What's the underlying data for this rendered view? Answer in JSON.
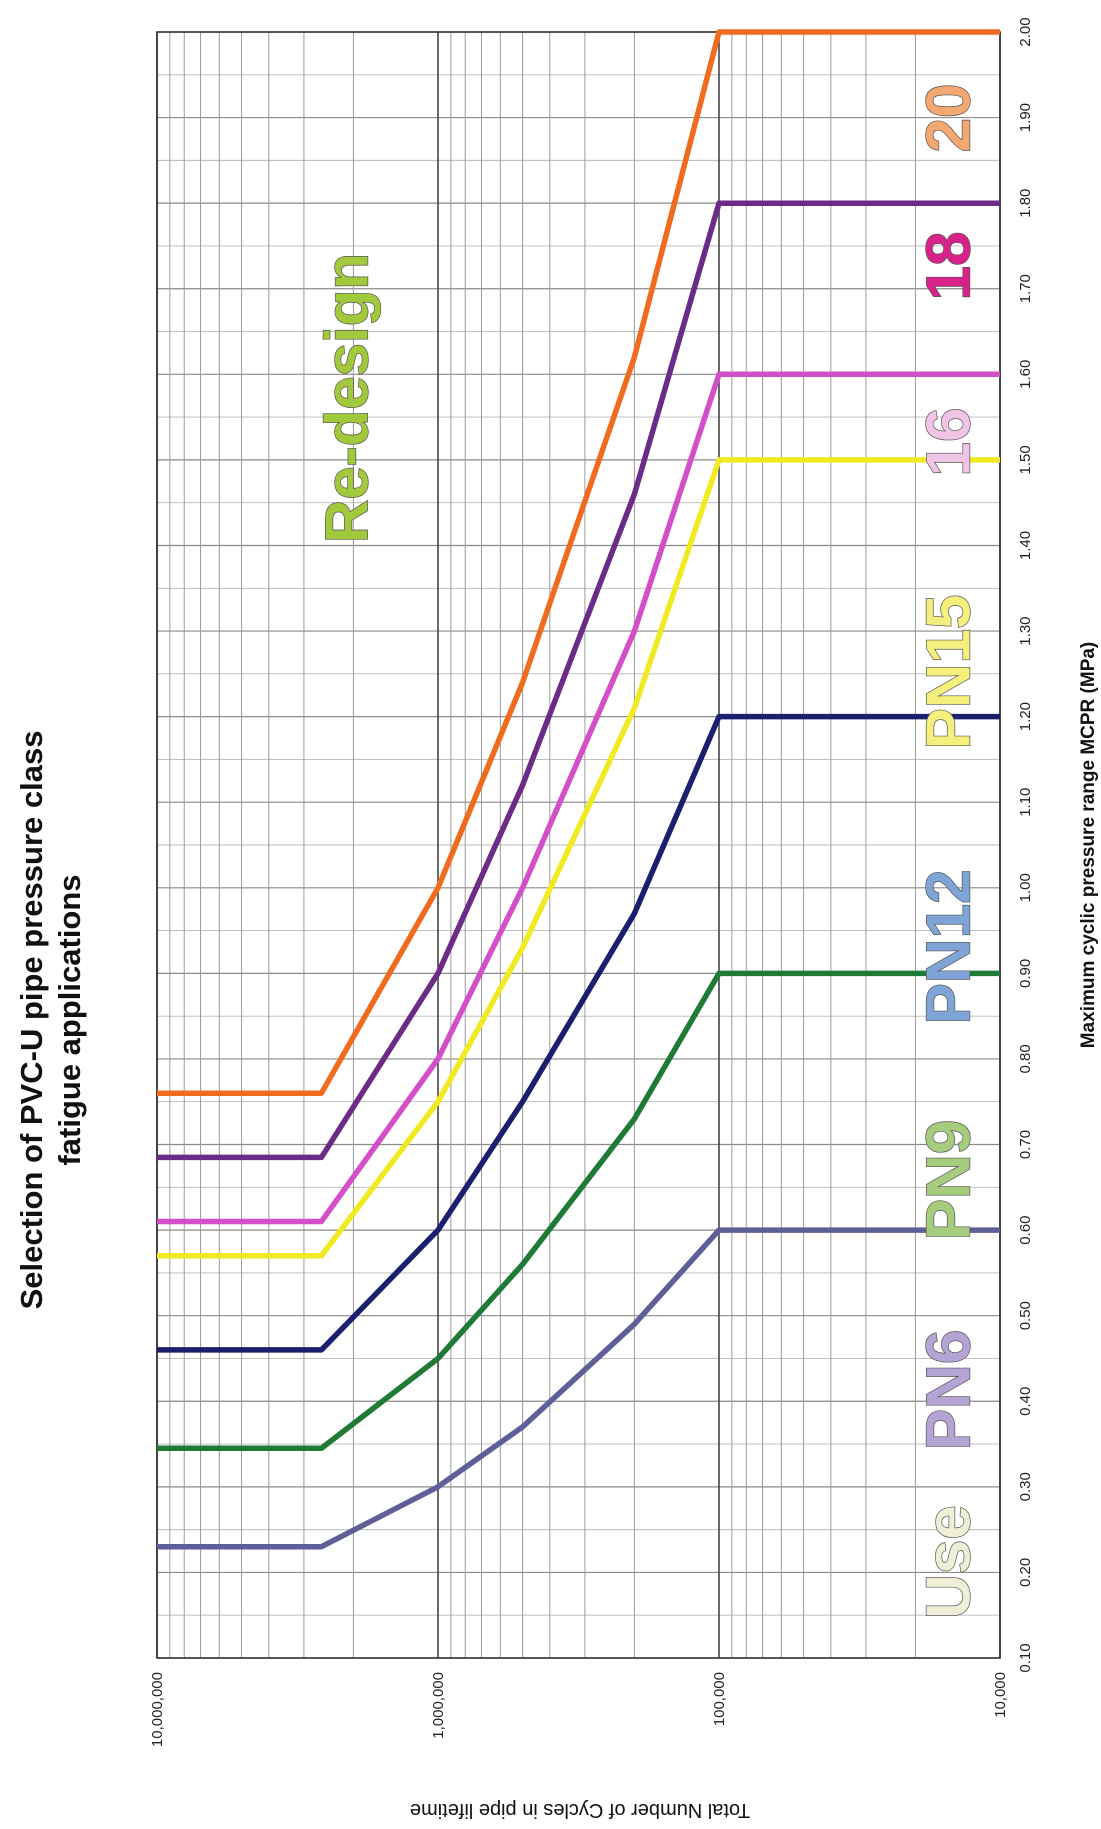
{
  "chart_data": {
    "type": "line",
    "title_lines": [
      "Selection of PVC-U pipe pressure class",
      "fatigue applications"
    ],
    "xlabel": "Maximum cyclic pressure range MCPR (MPa)",
    "ylabel": "Total Number of Cycles in pipe lifetime",
    "x_ticks": [
      "0.10",
      "0.20",
      "0.30",
      "0.40",
      "0.50",
      "0.60",
      "0.70",
      "0.80",
      "0.90",
      "1.00",
      "1.10",
      "1.20",
      "1.30",
      "1.40",
      "1.50",
      "1.60",
      "1.70",
      "1.80",
      "1.90",
      "2.00"
    ],
    "y_ticks": [
      {
        "value": 10000000,
        "label": "10,000,000"
      },
      {
        "value": 1000000,
        "label": "1,000,000"
      },
      {
        "value": 100000,
        "label": "100,000"
      },
      {
        "value": 10000,
        "label": "10,000"
      }
    ],
    "xlim": [
      0.1,
      2.0
    ],
    "ylim": [
      10000,
      10000000
    ],
    "y_scale": "log",
    "grid": true,
    "series": [
      {
        "name": "PN6",
        "color": "#5e5f98",
        "points": [
          [
            0.23,
            10000000
          ],
          [
            0.23,
            2600000
          ],
          [
            0.3,
            1000000
          ],
          [
            0.37,
            500000
          ],
          [
            0.49,
            200000
          ],
          [
            0.6,
            100000
          ],
          [
            0.6,
            10000
          ]
        ]
      },
      {
        "name": "PN9",
        "color": "#1e7a34",
        "points": [
          [
            0.345,
            10000000
          ],
          [
            0.345,
            2600000
          ],
          [
            0.45,
            1000000
          ],
          [
            0.56,
            500000
          ],
          [
            0.73,
            200000
          ],
          [
            0.9,
            100000
          ],
          [
            0.9,
            10000
          ]
        ]
      },
      {
        "name": "PN12",
        "color": "#1a1f6e",
        "points": [
          [
            0.46,
            10000000
          ],
          [
            0.46,
            2600000
          ],
          [
            0.6,
            1000000
          ],
          [
            0.75,
            500000
          ],
          [
            0.97,
            200000
          ],
          [
            1.2,
            100000
          ],
          [
            1.2,
            10000
          ]
        ]
      },
      {
        "name": "PN15",
        "color": "#f0ea22",
        "points": [
          [
            0.57,
            10000000
          ],
          [
            0.57,
            2600000
          ],
          [
            0.75,
            1000000
          ],
          [
            0.93,
            500000
          ],
          [
            1.21,
            200000
          ],
          [
            1.5,
            100000
          ],
          [
            1.5,
            10000
          ]
        ]
      },
      {
        "name": "16",
        "color": "#d24fc8",
        "points": [
          [
            0.61,
            10000000
          ],
          [
            0.61,
            2600000
          ],
          [
            0.8,
            1000000
          ],
          [
            1.0,
            500000
          ],
          [
            1.3,
            200000
          ],
          [
            1.6,
            100000
          ],
          [
            1.6,
            10000
          ]
        ]
      },
      {
        "name": "18",
        "color": "#6b2b86",
        "points": [
          [
            0.685,
            10000000
          ],
          [
            0.685,
            2600000
          ],
          [
            0.9,
            1000000
          ],
          [
            1.12,
            500000
          ],
          [
            1.46,
            200000
          ],
          [
            1.8,
            100000
          ],
          [
            1.8,
            10000
          ]
        ]
      },
      {
        "name": "20",
        "color": "#f06b1e",
        "points": [
          [
            0.76,
            10000000
          ],
          [
            0.76,
            2600000
          ],
          [
            1.0,
            1000000
          ],
          [
            1.24,
            500000
          ],
          [
            1.62,
            200000
          ],
          [
            2.0,
            100000
          ],
          [
            2.0,
            10000
          ]
        ]
      }
    ],
    "annotations": [
      {
        "text": "Use",
        "color": "#efefd8"
      },
      {
        "text": "PN6",
        "color": "#b4a4d4"
      },
      {
        "text": "PN9",
        "color": "#a6cc7e"
      },
      {
        "text": "PN12",
        "color": "#7fa5d6"
      },
      {
        "text": "PN15",
        "color": "#f5f07e"
      },
      {
        "text": "16",
        "color": "#f0c4e4"
      },
      {
        "text": "18",
        "color": "#d8228a"
      },
      {
        "text": "20",
        "color": "#f2a870"
      },
      {
        "text": "Re-design",
        "color": "#a2c83c"
      }
    ]
  }
}
